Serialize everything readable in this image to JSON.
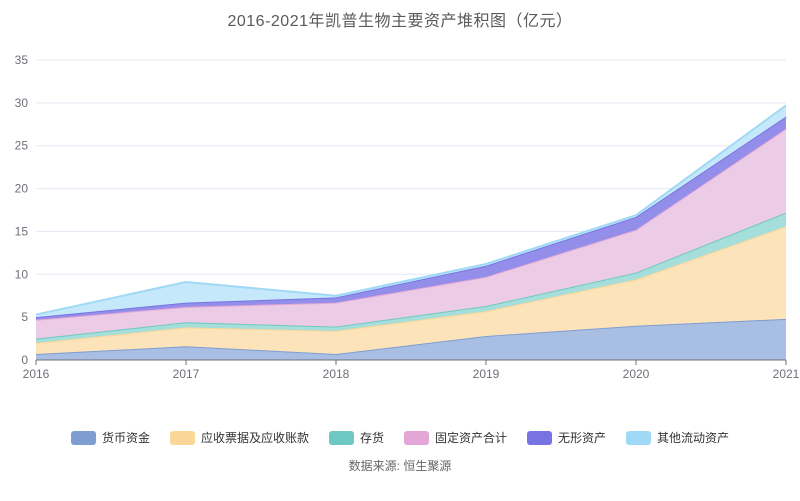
{
  "title": "2016-2021年凯普生物主要资产堆积图（亿元）",
  "source": "数据来源: 恒生聚源",
  "colors": {
    "grid": "#e3e7f3",
    "axis_line": "#6e7079",
    "tick_label": "#6e7079",
    "title_text": "#5a5a5a",
    "legend_text": "#333333",
    "source_text": "#666666",
    "background": "#ffffff"
  },
  "chart_data": {
    "type": "area",
    "stacked": true,
    "title": "2016-2021年凯普生物主要资产堆积图（亿元）",
    "xlabel": "",
    "ylabel": "",
    "x": [
      "2016",
      "2017",
      "2018",
      "2019",
      "2020",
      "2021"
    ],
    "ylim": [
      0,
      35
    ],
    "y_ticks": [
      0,
      5,
      10,
      15,
      20,
      25,
      30,
      35
    ],
    "grid": true,
    "legend_position": "bottom",
    "series": [
      {
        "name": "货币资金",
        "values": [
          0.7,
          1.6,
          0.7,
          2.8,
          4.0,
          4.8
        ],
        "line": "#7e9ed2",
        "fill": "#a9bee3"
      },
      {
        "name": "应收票据及应收账款",
        "values": [
          1.3,
          2.2,
          2.7,
          2.9,
          5.4,
          10.8
        ],
        "line": "#fad698",
        "fill": "#fde3b9"
      },
      {
        "name": "存货",
        "values": [
          0.5,
          0.6,
          0.5,
          0.6,
          0.8,
          1.6
        ],
        "line": "#6ec8c4",
        "fill": "#a5dedb"
      },
      {
        "name": "固定资产合计",
        "values": [
          2.2,
          1.8,
          2.8,
          3.4,
          5.0,
          9.8
        ],
        "line": "#e4a6d7",
        "fill": "#eccbe6"
      },
      {
        "name": "无形资产",
        "values": [
          0.3,
          0.5,
          0.6,
          1.3,
          1.5,
          1.4
        ],
        "line": "#7873e3",
        "fill": "#938ee9"
      },
      {
        "name": "其他流动资产",
        "values": [
          0.3,
          2.4,
          0.2,
          0.2,
          0.2,
          1.3
        ],
        "line": "#a0d9f5",
        "fill": "#c5e9fa"
      }
    ],
    "stack_totals": [
      5.3,
      9.1,
      7.5,
      11.2,
      16.9,
      29.7
    ]
  }
}
